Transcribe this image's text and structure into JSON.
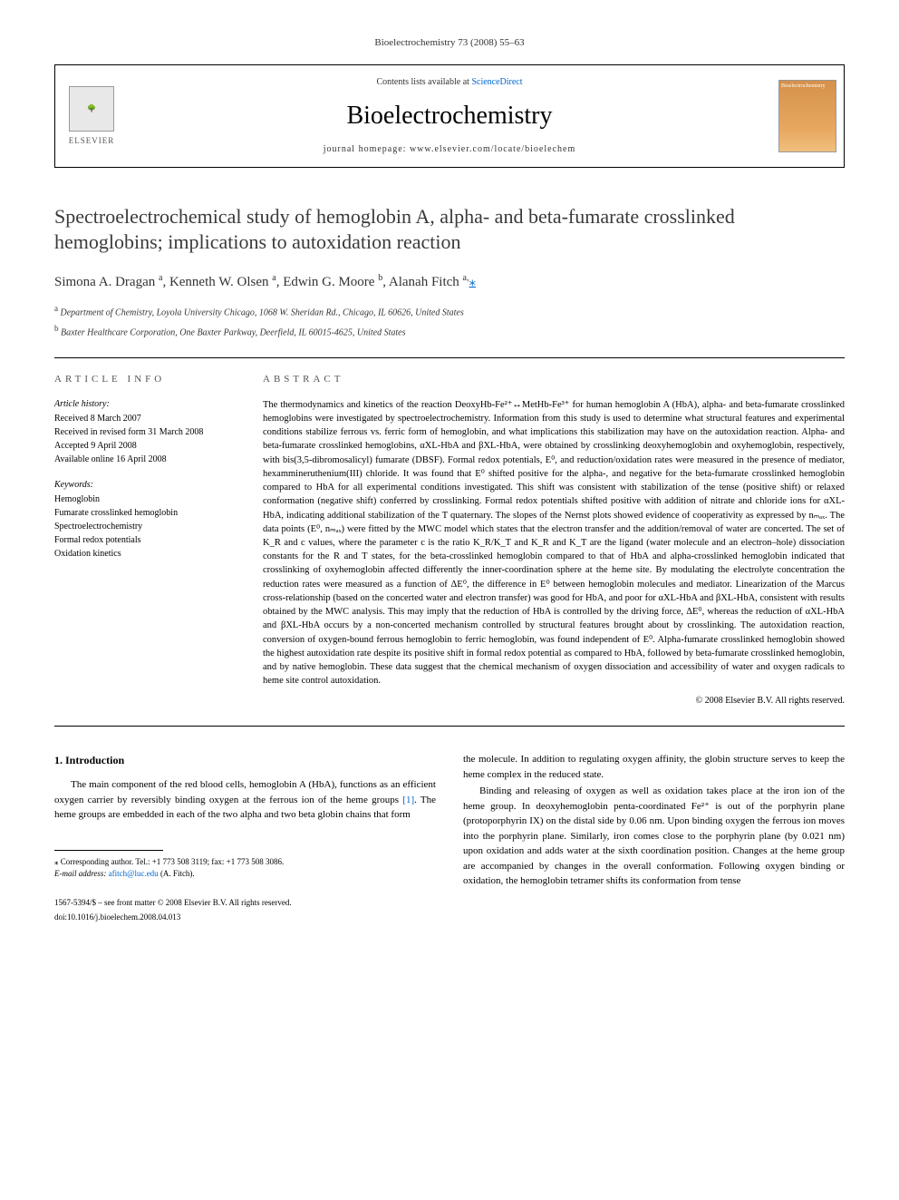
{
  "journal_ref": "Bioelectrochemistry 73 (2008) 55–63",
  "header": {
    "elsevier_label": "ELSEVIER",
    "contents_prefix": "Contents lists available at ",
    "contents_link": "ScienceDirect",
    "journal_name": "Bioelectrochemistry",
    "homepage_prefix": "journal homepage: ",
    "homepage_url": "www.elsevier.com/locate/bioelechem",
    "cover_label": "Bioelectrochemistry"
  },
  "title": "Spectroelectrochemical study of hemoglobin A, alpha- and beta-fumarate crosslinked hemoglobins; implications to autoxidation reaction",
  "authors_html": "Simona A. Dragan <sup>a</sup>, Kenneth W. Olsen <sup>a</sup>, Edwin G. Moore <sup>b</sup>, Alanah Fitch <sup>a,</sup>",
  "author_star": "⁎",
  "affiliations": [
    {
      "sup": "a",
      "text": "Department of Chemistry, Loyola University Chicago, 1068 W. Sheridan Rd., Chicago, IL 60626, United States"
    },
    {
      "sup": "b",
      "text": "Baxter Healthcare Corporation, One Baxter Parkway, Deerfield, IL 60015-4625, United States"
    }
  ],
  "article_info": {
    "heading": "ARTICLE INFO",
    "history_label": "Article history:",
    "history": [
      "Received 8 March 2007",
      "Received in revised form 31 March 2008",
      "Accepted 9 April 2008",
      "Available online 16 April 2008"
    ],
    "keywords_label": "Keywords:",
    "keywords": [
      "Hemoglobin",
      "Fumarate crosslinked hemoglobin",
      "Spectroelectrochemistry",
      "Formal redox potentials",
      "Oxidation kinetics"
    ]
  },
  "abstract": {
    "heading": "ABSTRACT",
    "text": "The thermodynamics and kinetics of the reaction DeoxyHb-Fe²⁺↔MetHb-Fe³⁺ for human hemoglobin A (HbA), alpha- and beta-fumarate crosslinked hemoglobins were investigated by spectroelectrochemistry. Information from this study is used to determine what structural features and experimental conditions stabilize ferrous vs. ferric form of hemoglobin, and what implications this stabilization may have on the autoxidation reaction. Alpha- and beta-fumarate crosslinked hemoglobins, αXL-HbA and βXL-HbA, were obtained by crosslinking deoxyhemoglobin and oxyhemoglobin, respectively, with bis(3,5-dibromosalicyl) fumarate (DBSF). Formal redox potentials, E⁰, and reduction/oxidation rates were measured in the presence of mediator, hexammineruthenium(III) chloride. It was found that E⁰ shifted positive for the alpha-, and negative for the beta-fumarate crosslinked hemoglobin compared to HbA for all experimental conditions investigated. This shift was consistent with stabilization of the tense (positive shift) or relaxed conformation (negative shift) conferred by crosslinking. Formal redox potentials shifted positive with addition of nitrate and chloride ions for αXL-HbA, indicating additional stabilization of the T quaternary. The slopes of the Nernst plots showed evidence of cooperativity as expressed by nₘₐₓ. The data points (E⁰, nₘₐₓ) were fitted by the MWC model which states that the electron transfer and the addition/removal of water are concerted. The set of K_R and c values, where the parameter c is the ratio K_R/K_T and K_R and K_T are the ligand (water molecule and an electron–hole) dissociation constants for the R and T states, for the beta-crosslinked hemoglobin compared to that of HbA and alpha-crosslinked hemoglobin indicated that crosslinking of oxyhemoglobin affected differently the inner-coordination sphere at the heme site. By modulating the electrolyte concentration the reduction rates were measured as a function of ΔE⁰, the difference in E⁰ between hemoglobin molecules and mediator. Linearization of the Marcus cross-relationship (based on the concerted water and electron transfer) was good for HbA, and poor for αXL-HbA and βXL-HbA, consistent with results obtained by the MWC analysis. This may imply that the reduction of HbA is controlled by the driving force, ΔE⁰, whereas the reduction of αXL-HbA and βXL-HbA occurs by a non-concerted mechanism controlled by structural features brought about by crosslinking. The autoxidation reaction, conversion of oxygen-bound ferrous hemoglobin to ferric hemoglobin, was found independent of E⁰. Alpha-fumarate crosslinked hemoglobin showed the highest autoxidation rate despite its positive shift in formal redox potential as compared to HbA, followed by beta-fumarate crosslinked hemoglobin, and by native hemoglobin. These data suggest that the chemical mechanism of oxygen dissociation and accessibility of water and oxygen radicals to heme site control autoxidation.",
    "copyright": "© 2008 Elsevier B.V. All rights reserved."
  },
  "body": {
    "section_heading": "1. Introduction",
    "col1_paras": [
      "The main component of the red blood cells, hemoglobin A (HbA), functions as an efficient oxygen carrier by reversibly binding oxygen at the ferrous ion of the heme groups [1]. The heme groups are embedded in each of the two alpha and two beta globin chains that form"
    ],
    "col2_paras": [
      "the molecule. In addition to regulating oxygen affinity, the globin structure serves to keep the heme complex in the reduced state.",
      "Binding and releasing of oxygen as well as oxidation takes place at the iron ion of the heme group. In deoxyhemoglobin penta-coordinated Fe²⁺ is out of the porphyrin plane (protoporphyrin IX) on the distal side by 0.06 nm. Upon binding oxygen the ferrous ion moves into the porphyrin plane. Similarly, iron comes close to the porphyrin plane (by 0.021 nm) upon oxidation and adds water at the sixth coordination position. Changes at the heme group are accompanied by changes in the overall conformation. Following oxygen binding or oxidation, the hemoglobin tetramer shifts its conformation from tense"
    ]
  },
  "footnote": {
    "corresponding": "⁎ Corresponding author. Tel.: +1 773 508 3119; fax: +1 773 508 3086.",
    "email_label": "E-mail address:",
    "email": "afitch@luc.edu",
    "email_suffix": "(A. Fitch)."
  },
  "footer": {
    "issn": "1567-5394/$ – see front matter © 2008 Elsevier B.V. All rights reserved.",
    "doi": "doi:10.1016/j.bioelechem.2008.04.013"
  },
  "ref_link_text": "[1]"
}
